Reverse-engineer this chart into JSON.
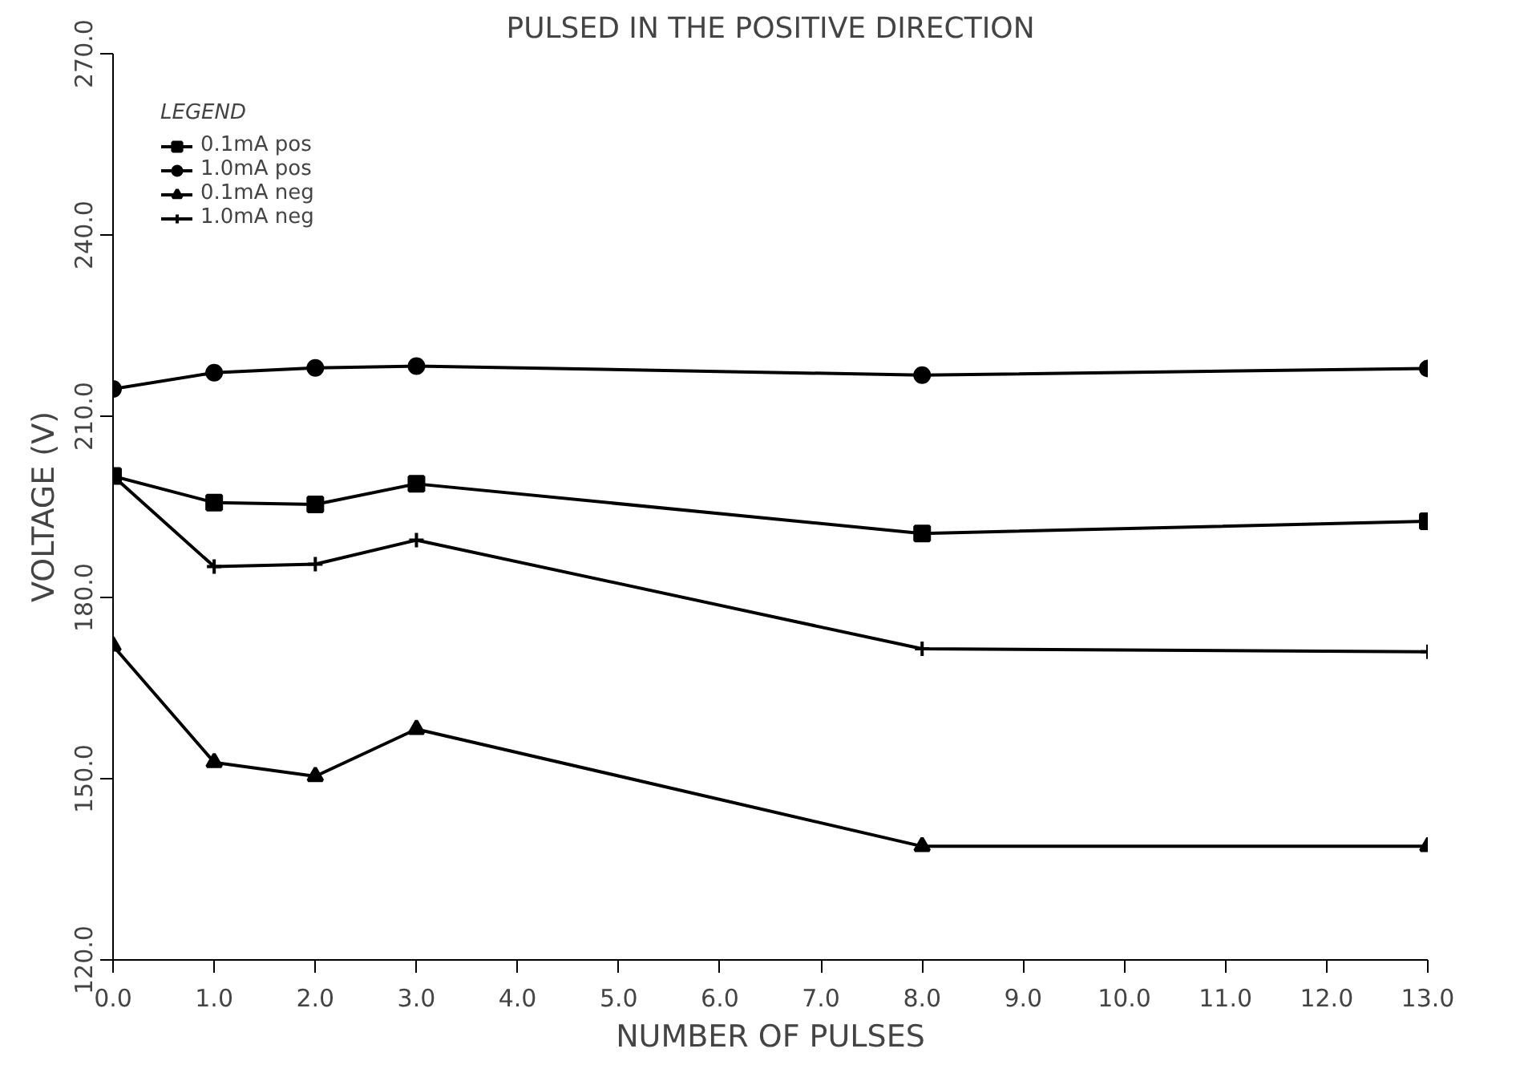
{
  "chart_data": {
    "type": "line",
    "title": "PULSED IN THE POSITIVE DIRECTION",
    "xlabel": "NUMBER OF PULSES",
    "ylabel": "VOLTAGE (V)",
    "legend_title": "LEGEND",
    "x": [
      0,
      1,
      2,
      3,
      8,
      13
    ],
    "series": [
      {
        "name": "0.1mA pos",
        "color": "#000000",
        "marker": "square",
        "values": [
          200.1,
          195.7,
          195.4,
          198.8,
          190.6,
          192.6
        ]
      },
      {
        "name": "1.0mA pos",
        "color": "#000000",
        "marker": "circle",
        "values": [
          214.5,
          217.2,
          218.0,
          218.3,
          216.8,
          217.9
        ]
      },
      {
        "name": "0.1mA neg",
        "color": "#000000",
        "marker": "triangle",
        "values": [
          172.0,
          152.7,
          150.4,
          158.2,
          138.8,
          138.8
        ]
      },
      {
        "name": "1.0mA neg",
        "color": "#000000",
        "marker": "cross",
        "values": [
          200.1,
          185.1,
          185.5,
          189.5,
          171.5,
          171.0
        ]
      }
    ],
    "xlim": [
      0,
      13
    ],
    "ylim": [
      120,
      270
    ],
    "xticks": [
      {
        "value": 0,
        "label": "0.0"
      },
      {
        "value": 1,
        "label": "1.0"
      },
      {
        "value": 2,
        "label": "2.0"
      },
      {
        "value": 3,
        "label": "3.0"
      },
      {
        "value": 4,
        "label": "4.0"
      },
      {
        "value": 5,
        "label": "5.0"
      },
      {
        "value": 6,
        "label": "6.0"
      },
      {
        "value": 7,
        "label": "7.0"
      },
      {
        "value": 8,
        "label": "8.0"
      },
      {
        "value": 9,
        "label": "9.0"
      },
      {
        "value": 10,
        "label": "10.0"
      },
      {
        "value": 11,
        "label": "11.0"
      },
      {
        "value": 12,
        "label": "12.0"
      },
      {
        "value": 13,
        "label": "13.0"
      }
    ],
    "yticks": [
      {
        "value": 120,
        "label": "120.0"
      },
      {
        "value": 150,
        "label": "150.0"
      },
      {
        "value": 180,
        "label": "180.0"
      },
      {
        "value": 210,
        "label": "210.0"
      },
      {
        "value": 240,
        "label": "240.0"
      },
      {
        "value": 270,
        "label": "270.0"
      }
    ],
    "grid": false,
    "legend": "top left",
    "line_style": "solid"
  }
}
